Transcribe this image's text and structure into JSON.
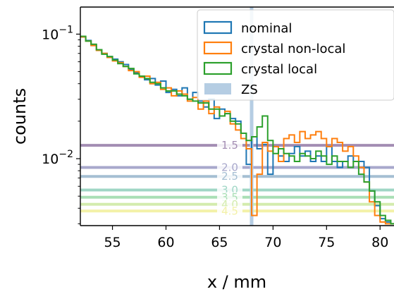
{
  "chart_data": {
    "type": "line",
    "xlabel": "x / mm",
    "ylabel": "counts",
    "xlim": [
      52,
      81.3
    ],
    "ylim": [
      0.0029,
      0.165
    ],
    "yscale": "log",
    "xticks": [
      55,
      60,
      65,
      70,
      75,
      80
    ],
    "xtick_labels": [
      "55",
      "60",
      "65",
      "70",
      "75",
      "80"
    ],
    "ytick_labels": [
      {
        "value": 0.1,
        "base": "10",
        "exp": "−1"
      },
      {
        "value": 0.01,
        "base": "10",
        "exp": "−2"
      }
    ],
    "legend": {
      "position": "top-right",
      "entries": [
        "nominal",
        "crystal non-local",
        "crystal local",
        "ZS"
      ]
    },
    "zs": {
      "name": "ZS",
      "x": 68.0,
      "color": "#b5cde3"
    },
    "contours": [
      {
        "label": "1.5",
        "value": 0.0128,
        "color": "#a38db3"
      },
      {
        "label": "2.0",
        "value": 0.0085,
        "color": "#a8a8cc"
      },
      {
        "label": "2.5",
        "value": 0.0072,
        "color": "#a5bfd3"
      },
      {
        "label": "3.0",
        "value": 0.0056,
        "color": "#9fd6c5"
      },
      {
        "label": "3.5",
        "value": 0.0049,
        "color": "#a9dfb5"
      },
      {
        "label": "4.0",
        "value": 0.0043,
        "color": "#d3ecad"
      },
      {
        "label": "4.5",
        "value": 0.0038,
        "color": "#f3f1a8"
      }
    ],
    "step": 0.5,
    "x": [
      52,
      52.5,
      53,
      53.5,
      54,
      54.5,
      55,
      55.5,
      56,
      56.5,
      57,
      57.5,
      58,
      58.5,
      59,
      59.5,
      60,
      60.5,
      61,
      61.5,
      62,
      62.5,
      63,
      63.5,
      64,
      64.5,
      65,
      65.5,
      66,
      66.5,
      67,
      67.5,
      68,
      68.5,
      69,
      69.5,
      70,
      70.5,
      71,
      71.5,
      72,
      72.5,
      73,
      73.5,
      74,
      74.5,
      75,
      75.5,
      76,
      76.5,
      77,
      77.5,
      78,
      78.5,
      79,
      79.5,
      80,
      80.5,
      81
    ],
    "series": [
      {
        "name": "nominal",
        "color": "#1f77b4",
        "values": [
          0.095,
          0.089,
          0.082,
          0.075,
          0.07,
          0.066,
          0.063,
          0.06,
          0.057,
          0.052,
          0.049,
          0.046,
          0.043,
          0.044,
          0.039,
          0.042,
          0.034,
          0.036,
          0.032,
          0.037,
          0.03,
          0.034,
          0.029,
          0.026,
          0.03,
          0.021,
          0.025,
          0.023,
          0.021,
          0.02,
          0.016,
          0.009,
          0.015,
          0.012,
          0.013,
          0.0075,
          0.0125,
          0.0105,
          0.0095,
          0.011,
          0.0125,
          0.0105,
          0.0115,
          0.0095,
          0.0105,
          0.0095,
          0.0125,
          0.0095,
          0.0085,
          0.0095,
          0.0105,
          0.0095,
          0.0095,
          0.0085,
          0.0055,
          0.0042,
          0.0033,
          0.0031,
          0.003
        ]
      },
      {
        "name": "crystal non-local",
        "color": "#ff7f0e",
        "values": [
          0.095,
          0.088,
          0.081,
          0.074,
          0.07,
          0.065,
          0.061,
          0.059,
          0.055,
          0.051,
          0.05,
          0.045,
          0.046,
          0.04,
          0.041,
          0.036,
          0.037,
          0.032,
          0.035,
          0.033,
          0.029,
          0.031,
          0.025,
          0.029,
          0.023,
          0.026,
          0.022,
          0.024,
          0.019,
          0.017,
          0.0145,
          0.012,
          0.0035,
          0.0075,
          0.0135,
          0.0115,
          0.0125,
          0.0095,
          0.0145,
          0.0155,
          0.0135,
          0.0165,
          0.0145,
          0.0155,
          0.0165,
          0.0145,
          0.0125,
          0.0145,
          0.0135,
          0.0115,
          0.0125,
          0.0105,
          0.0085,
          0.0065,
          0.0045,
          0.0035,
          0.0031,
          0.003,
          0.003
        ]
      },
      {
        "name": "crystal local",
        "color": "#2ca02c",
        "values": [
          0.096,
          0.088,
          0.083,
          0.075,
          0.069,
          0.066,
          0.062,
          0.058,
          0.055,
          0.053,
          0.048,
          0.046,
          0.044,
          0.041,
          0.04,
          0.037,
          0.035,
          0.035,
          0.033,
          0.032,
          0.03,
          0.029,
          0.028,
          0.028,
          0.025,
          0.025,
          0.022,
          0.023,
          0.02,
          0.019,
          0.016,
          0.014,
          0.015,
          0.018,
          0.022,
          0.014,
          0.011,
          0.012,
          0.011,
          0.0105,
          0.0095,
          0.011,
          0.0105,
          0.01,
          0.0115,
          0.0105,
          0.009,
          0.0105,
          0.0095,
          0.0095,
          0.0085,
          0.0095,
          0.0075,
          0.0065,
          0.0055,
          0.0045,
          0.0035,
          0.0032,
          0.003
        ]
      }
    ]
  }
}
